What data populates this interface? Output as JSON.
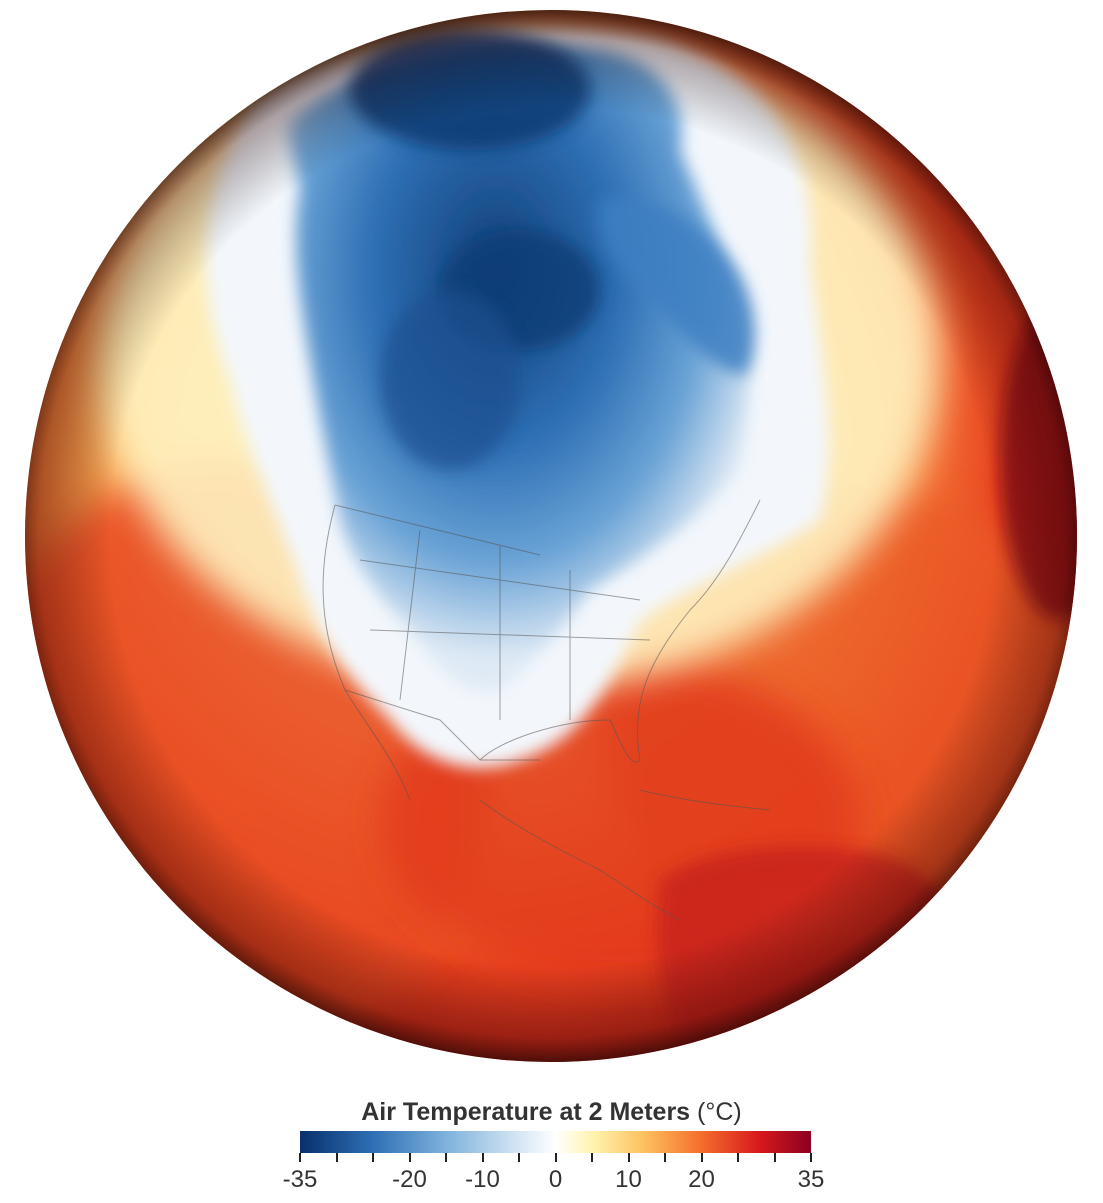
{
  "legend": {
    "title": "Air Temperature at 2 Meters",
    "unit": "(°C)",
    "min": -35,
    "max": 35,
    "tick_values": [
      -35,
      -30,
      -25,
      -20,
      -15,
      -10,
      -5,
      0,
      5,
      10,
      15,
      20,
      25,
      30,
      35
    ],
    "labels": [
      {
        "value": -35,
        "text": "-35"
      },
      {
        "value": -20,
        "text": "-20"
      },
      {
        "value": -10,
        "text": "-10"
      },
      {
        "value": 0,
        "text": "0"
      },
      {
        "value": 10,
        "text": "10"
      },
      {
        "value": 20,
        "text": "20"
      },
      {
        "value": 35,
        "text": "35"
      }
    ],
    "color_stops": [
      {
        "value": -35,
        "color": "#08306b"
      },
      {
        "value": -25,
        "color": "#2f6fb5"
      },
      {
        "value": -15,
        "color": "#7fb2dc"
      },
      {
        "value": -5,
        "color": "#d5e6f4"
      },
      {
        "value": 0,
        "color": "#ffffff"
      },
      {
        "value": 5,
        "color": "#fff4b0"
      },
      {
        "value": 12,
        "color": "#fdc25f"
      },
      {
        "value": 20,
        "color": "#f46d2c"
      },
      {
        "value": 28,
        "color": "#d7191c"
      },
      {
        "value": 35,
        "color": "#8b0021"
      }
    ]
  },
  "map": {
    "projection": "orthographic",
    "region": "North America",
    "colors": {
      "ocean_hot": "#e8401f",
      "ocean_warm": "#f4a44a",
      "cold_core": "#1a4f8f",
      "cold_mid": "#4a8ccc",
      "snow_white": "#f2f6fb",
      "border_line": "#555555"
    }
  }
}
